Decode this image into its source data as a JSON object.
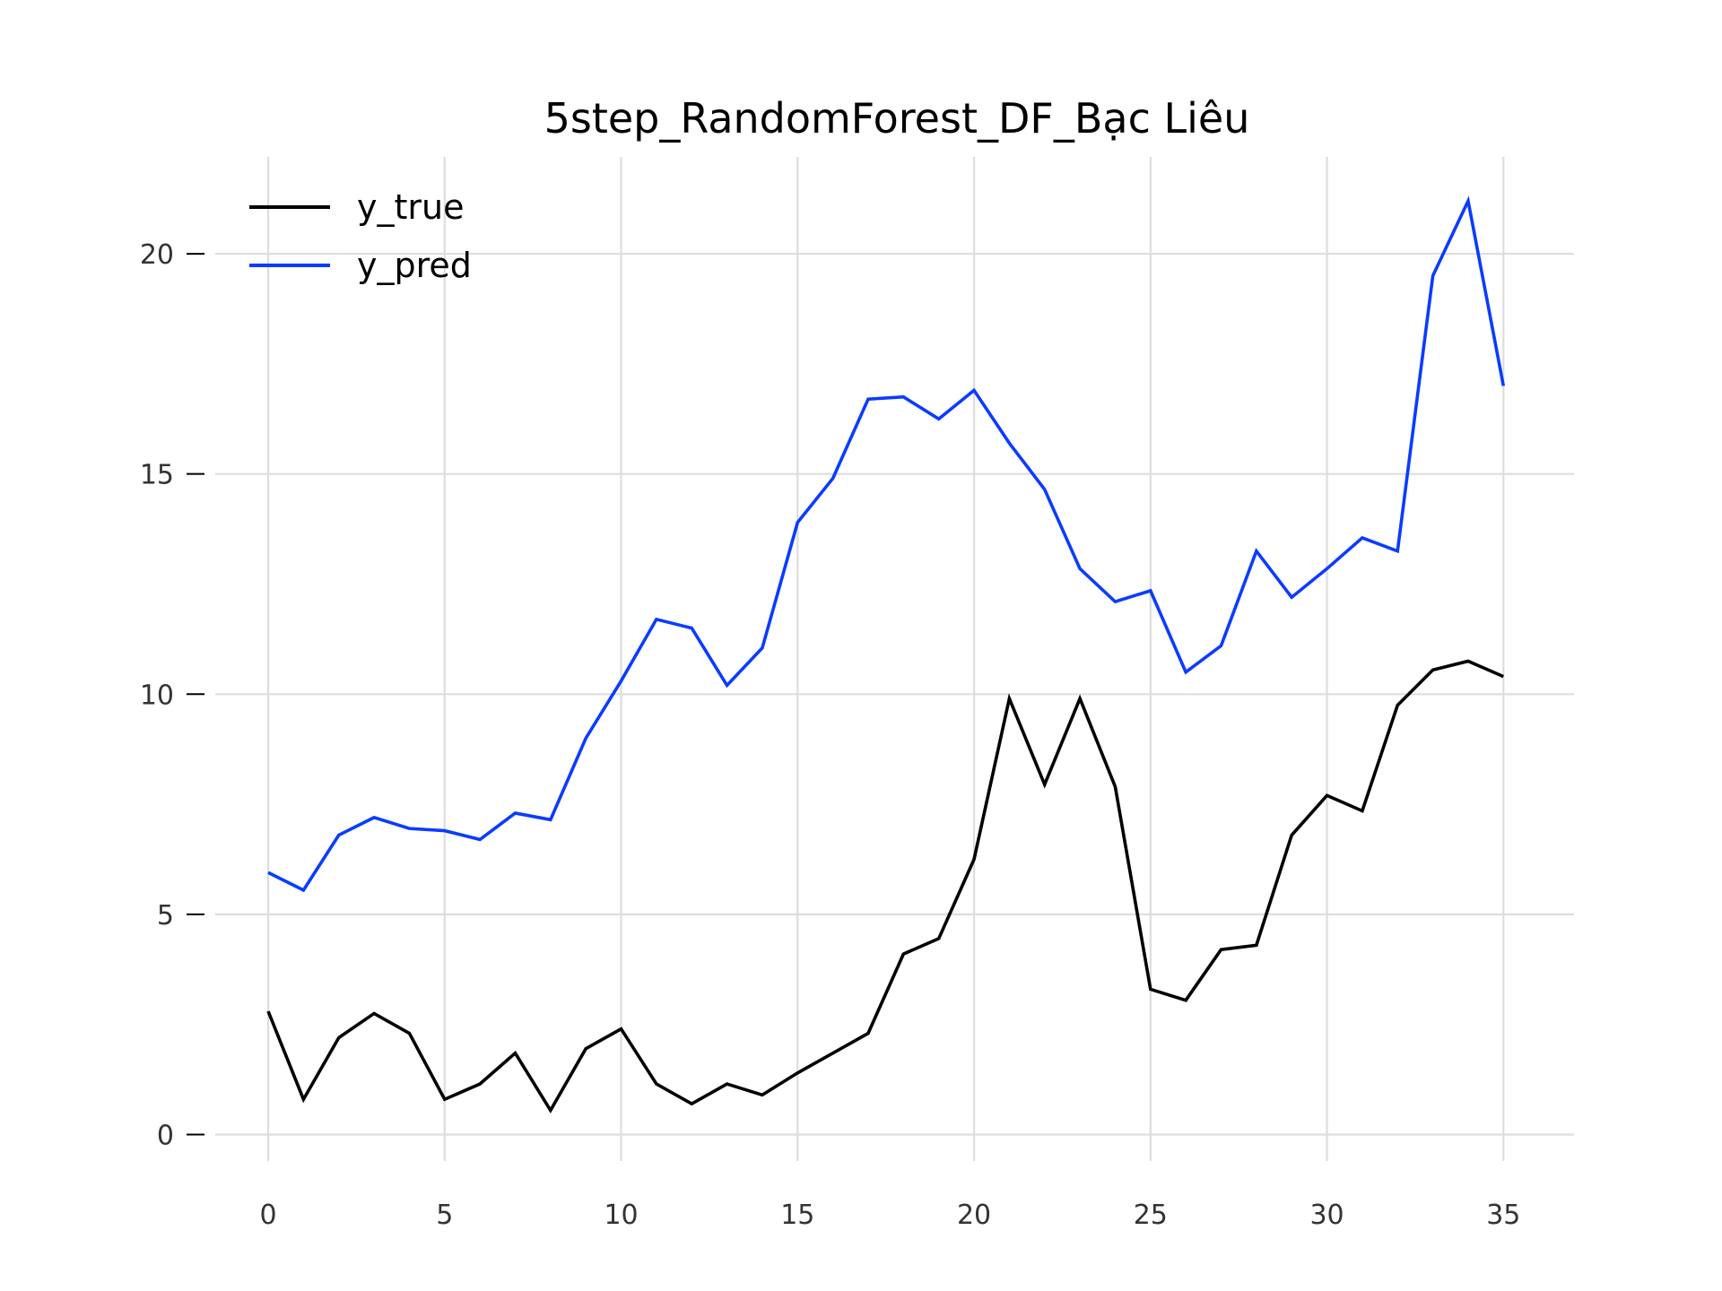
{
  "chart_data": {
    "type": "line",
    "title": "5step_RandomForest_DF_Bạc Liêu",
    "xlabel": "",
    "ylabel": "",
    "xlim": [
      -1.5,
      37.0
    ],
    "ylim": [
      -0.6,
      22.2
    ],
    "xticks": [
      0,
      5,
      10,
      15,
      20,
      25,
      30,
      35
    ],
    "yticks": [
      0,
      5,
      10,
      15,
      20
    ],
    "grid": true,
    "legend_position": "top-left",
    "x": [
      0,
      1,
      2,
      3,
      4,
      5,
      6,
      7,
      8,
      9,
      10,
      11,
      12,
      13,
      14,
      15,
      16,
      17,
      18,
      19,
      20,
      21,
      22,
      23,
      24,
      25,
      26,
      27,
      28,
      29,
      30,
      31,
      32,
      33,
      34,
      35
    ],
    "series": [
      {
        "name": "y_true",
        "color": "#000000",
        "values": [
          2.8,
          0.8,
          2.2,
          2.75,
          2.3,
          0.8,
          1.15,
          1.85,
          0.55,
          1.95,
          2.4,
          1.15,
          0.7,
          1.15,
          0.9,
          1.4,
          1.85,
          2.3,
          4.1,
          4.45,
          6.25,
          9.9,
          7.95,
          9.9,
          7.9,
          3.3,
          3.05,
          4.2,
          4.3,
          6.8,
          7.7,
          7.35,
          9.75,
          10.55,
          10.75,
          10.4
        ]
      },
      {
        "name": "y_pred",
        "color": "#0a3cff",
        "values": [
          5.95,
          5.55,
          6.8,
          7.2,
          6.95,
          6.9,
          6.7,
          7.3,
          7.15,
          9.0,
          10.3,
          11.7,
          11.5,
          10.2,
          11.05,
          13.9,
          14.9,
          16.7,
          16.75,
          16.25,
          16.9,
          15.7,
          14.65,
          12.85,
          12.1,
          12.35,
          10.5,
          11.1,
          13.25,
          12.2,
          12.85,
          13.55,
          13.25,
          19.5,
          21.2,
          17.0
        ]
      }
    ]
  }
}
